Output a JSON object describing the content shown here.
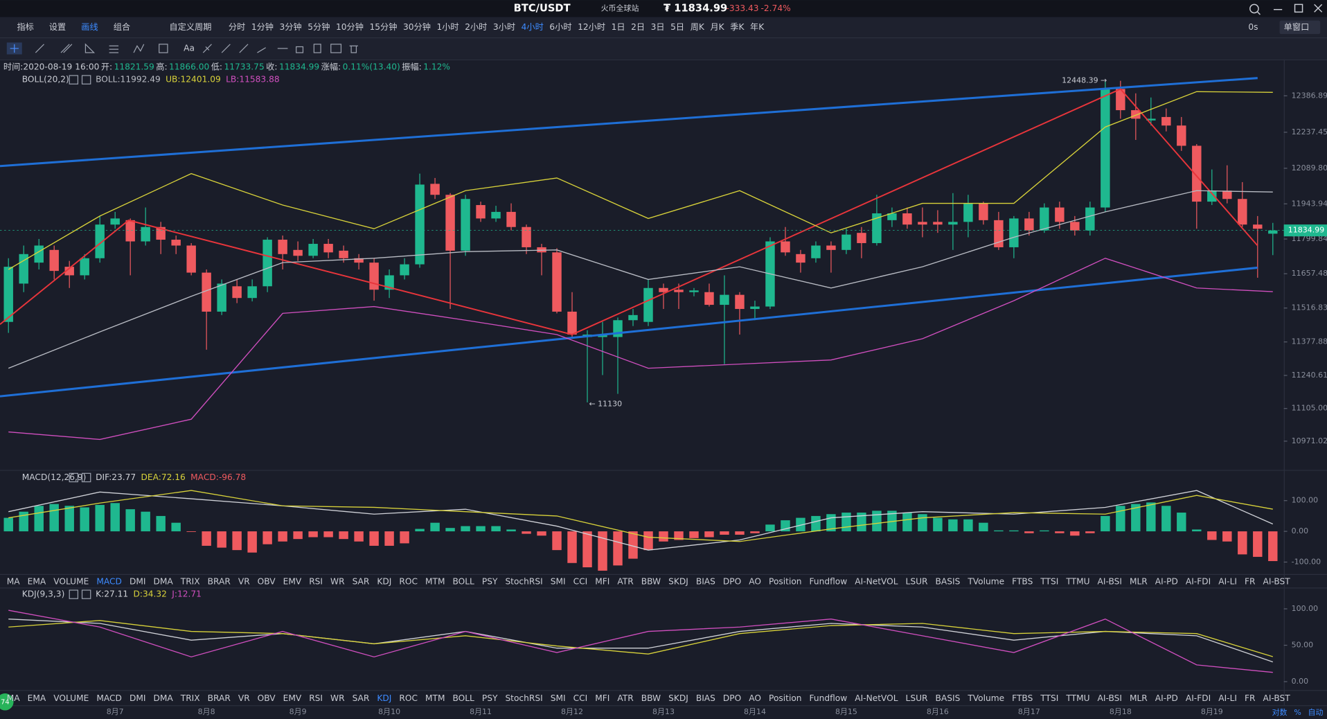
{
  "header": {
    "pair": "BTC/USDT",
    "exchange": "火币全球站",
    "price": "₮ 11834.99",
    "change": "-333.43",
    "change_pct": "-2.74%"
  },
  "toolbar": {
    "tools": [
      "指标",
      "设置",
      "画线",
      "组合"
    ],
    "active_tool": "画线",
    "custom_period": "自定义周期",
    "periods": [
      "分时",
      "1分钟",
      "3分钟",
      "5分钟",
      "10分钟",
      "15分钟",
      "30分钟",
      "1小时",
      "2小时",
      "3小时",
      "4小时",
      "6小时",
      "12小时",
      "1日",
      "2日",
      "3日",
      "5日",
      "周K",
      "月K",
      "季K",
      "年K"
    ],
    "active_period": "4小时",
    "timer": "0s",
    "window": "单窗口",
    "text_tool": "Aa"
  },
  "info": {
    "items": [
      "时间:2020-08-19 16:00",
      "开:",
      "11821.59",
      "高:",
      "11866.00",
      "低:",
      "11733.75",
      "收:",
      "11834.99",
      "涨幅:",
      "0.11%(13.40)",
      "振幅:",
      "1.12%"
    ]
  },
  "legends": {
    "boll": [
      "BOLL(20,2)",
      "BOLL:11992.49",
      "UB:12401.09",
      "LB:11583.88"
    ],
    "macd": [
      "MACD(12,26,9)",
      "DIF:23.77",
      "DEA:72.16",
      "MACD:-96.78"
    ],
    "kdj": [
      "KDJ(9,3,3)",
      "K:27.11",
      "D:34.32",
      "J:12.71"
    ]
  },
  "indicator_tabs": {
    "items": [
      "MA",
      "EMA",
      "VOLUME",
      "MACD",
      "DMI",
      "DMA",
      "TRIX",
      "BRAR",
      "VR",
      "OBV",
      "EMV",
      "RSI",
      "WR",
      "SAR",
      "KDJ",
      "ROC",
      "MTM",
      "BOLL",
      "PSY",
      "StochRSI",
      "SMI",
      "CCI",
      "MFI",
      "ATR",
      "BBW",
      "SKDJ",
      "BIAS",
      "DPO",
      "AO",
      "Position",
      "Fundflow",
      "AI-NetVOL",
      "LSUR",
      "BASIS",
      "TVolume",
      "FTBS",
      "TTSI",
      "TTMU",
      "AI-BSI",
      "MLR",
      "AI-PD",
      "AI-FDI",
      "AI-LI",
      "FR",
      "AI-BST"
    ],
    "active_rows": [
      "MACD",
      "KDJ"
    ]
  },
  "footer": {
    "scale_modes": [
      "对数",
      "%",
      "自动"
    ],
    "badge": "74"
  },
  "chart": {
    "type": "candlestick",
    "colors": {
      "up": "#1fb88f",
      "down": "#ef5a5f"
    },
    "x": [
      null,
      null,
      null,
      null,
      null,
      null,
      null,
      "8月7",
      null,
      null,
      null,
      null,
      null,
      "8月8",
      null,
      null,
      null,
      null,
      null,
      "8月9",
      null,
      null,
      null,
      null,
      null,
      "8月10",
      null,
      null,
      null,
      null,
      null,
      "8月11",
      null,
      null,
      null,
      null,
      null,
      "8月12",
      null,
      null,
      null,
      null,
      null,
      "8月13",
      null,
      null,
      null,
      null,
      null,
      "8月14",
      null,
      null,
      null,
      null,
      null,
      "8月15",
      null,
      null,
      null,
      null,
      null,
      "8月16",
      null,
      null,
      null,
      null,
      null,
      "8月17",
      null,
      null,
      null,
      null,
      null,
      "8月18",
      null,
      null,
      null,
      null,
      null,
      "8月19",
      null,
      null,
      null,
      null
    ],
    "candles": [
      [
        11460,
        11721,
        11415,
        11686
      ],
      [
        11617,
        11773,
        11582,
        11738
      ],
      [
        11703,
        11800,
        11675,
        11773
      ],
      [
        11755,
        11773,
        11634,
        11669
      ],
      [
        11686,
        11710,
        11599,
        11651
      ],
      [
        11651,
        11738,
        11634,
        11721
      ],
      [
        11721,
        11894,
        11703,
        11859
      ],
      [
        11859,
        11911,
        11842,
        11884
      ],
      [
        11877,
        11884,
        11651,
        11790
      ],
      [
        11790,
        11929,
        11773,
        11849
      ],
      [
        11849,
        11870,
        11738,
        11797
      ],
      [
        11797,
        11814,
        11738,
        11773
      ],
      [
        11773,
        11783,
        11651,
        11662
      ],
      [
        11662,
        11675,
        11346,
        11502
      ],
      [
        11502,
        11634,
        11488,
        11617
      ],
      [
        11606,
        11634,
        11537,
        11558
      ],
      [
        11558,
        11634,
        11544,
        11606
      ],
      [
        11606,
        11807,
        11582,
        11797
      ],
      [
        11797,
        11814,
        11675,
        11738
      ],
      [
        11755,
        11790,
        11710,
        11731
      ],
      [
        11731,
        11800,
        11721,
        11780
      ],
      [
        11780,
        11800,
        11721,
        11745
      ],
      [
        11752,
        11773,
        11703,
        11721
      ],
      [
        11721,
        11738,
        11675,
        11703
      ],
      [
        11703,
        11721,
        11547,
        11592
      ],
      [
        11592,
        11675,
        11558,
        11651
      ],
      [
        11651,
        11721,
        11634,
        11696
      ],
      [
        11696,
        12068,
        11682,
        12023
      ],
      [
        12026,
        12050,
        11964,
        11981
      ],
      [
        11981,
        11988,
        11513,
        11752
      ],
      [
        11752,
        11981,
        11731,
        11964
      ],
      [
        11939,
        11953,
        11870,
        11884
      ],
      [
        11884,
        11936,
        11870,
        11911
      ],
      [
        11911,
        11946,
        11835,
        11849
      ],
      [
        11849,
        11859,
        11738,
        11766
      ],
      [
        11766,
        11780,
        11651,
        11745
      ],
      [
        11745,
        11762,
        11495,
        11502
      ],
      [
        11502,
        11582,
        11391,
        11408
      ],
      [
        11398,
        11426,
        11130,
        11408
      ],
      [
        11398,
        11460,
        11242,
        11405
      ],
      [
        11398,
        11478,
        11165,
        11467
      ],
      [
        11467,
        11513,
        11443,
        11488
      ],
      [
        11460,
        11634,
        11443,
        11599
      ],
      [
        11599,
        11617,
        11513,
        11582
      ],
      [
        11592,
        11617,
        11513,
        11582
      ],
      [
        11582,
        11599,
        11565,
        11589
      ],
      [
        11582,
        11617,
        11523,
        11530
      ],
      [
        11530,
        11651,
        11287,
        11571
      ],
      [
        11571,
        11582,
        11408,
        11513
      ],
      [
        11513,
        11547,
        11467,
        11523
      ],
      [
        11523,
        11807,
        11513,
        11790
      ],
      [
        11790,
        11849,
        11731,
        11745
      ],
      [
        11738,
        11755,
        11662,
        11703
      ],
      [
        11721,
        11790,
        11703,
        11773
      ],
      [
        11773,
        11790,
        11662,
        11755
      ],
      [
        11755,
        11842,
        11738,
        11818
      ],
      [
        11825,
        11849,
        11721,
        11783
      ],
      [
        11783,
        11981,
        11773,
        11905
      ],
      [
        11877,
        11929,
        11849,
        11905
      ],
      [
        11905,
        11929,
        11842,
        11859
      ],
      [
        11870,
        11929,
        11807,
        11859
      ],
      [
        11870,
        11918,
        11825,
        11859
      ],
      [
        11859,
        11988,
        11755,
        11870
      ],
      [
        11870,
        11981,
        11807,
        11946
      ],
      [
        11946,
        11953,
        11859,
        11877
      ],
      [
        11877,
        11911,
        11755,
        11766
      ],
      [
        11766,
        11894,
        11721,
        11884
      ],
      [
        11884,
        11911,
        11814,
        11835
      ],
      [
        11835,
        11946,
        11825,
        11929
      ],
      [
        11929,
        11953,
        11842,
        11870
      ],
      [
        11870,
        11894,
        11814,
        11835
      ],
      [
        11835,
        11953,
        11814,
        11929
      ],
      [
        11929,
        12446,
        11911,
        12415
      ],
      [
        12415,
        12448.39,
        12293,
        12328
      ],
      [
        12328,
        12397,
        12206,
        12293
      ],
      [
        12286,
        12380,
        12265,
        12293
      ],
      [
        12300,
        12335,
        12241,
        12265
      ],
      [
        12265,
        12300,
        12161,
        12182
      ],
      [
        12182,
        12189,
        11842,
        11953
      ],
      [
        11953,
        12085,
        11939,
        11998
      ],
      [
        11998,
        12102,
        11946,
        11964
      ],
      [
        11964,
        12033,
        11849,
        11859
      ],
      [
        11859,
        11894,
        11641,
        11842
      ],
      [
        11821.59,
        11866,
        11733.75,
        11834.99
      ]
    ],
    "ylim": [
      10853,
      12529
    ],
    "yticks": [
      12386.89,
      12237.45,
      {
        "value": 12089.8,
        "label": "12089.80"
      },
      11943.94,
      11799.84,
      11657.48,
      11516.83,
      11377.88,
      11240.61,
      {
        "value": 11105,
        "label": "11105.00"
      },
      10971.02
    ],
    "high_note": "12448.39 →",
    "low_note": "← 11130",
    "boll": {
      "index": [
        0,
        6,
        12,
        18,
        24,
        30,
        36,
        42,
        48,
        54,
        60,
        66,
        72,
        78,
        83
      ],
      "upper": [
        11675,
        11894,
        12068,
        11939,
        11842,
        11998,
        12050,
        11884,
        11998,
        11825,
        11946,
        11946,
        12259,
        12404,
        12401.09
      ],
      "mid": [
        11270,
        11419,
        11565,
        11703,
        11721,
        11748,
        11755,
        11634,
        11686,
        11599,
        11686,
        11807,
        11911,
        11998,
        11992.49
      ],
      "lower": [
        11009,
        10978,
        11061,
        11495,
        11523,
        11467,
        11408,
        11270,
        11287,
        11304,
        11391,
        11547,
        11721,
        11599,
        11583.88
      ],
      "colors": [
        "#d8d23a",
        "#b9bcc4",
        "#d04fbf"
      ]
    }
  },
  "macd": {
    "ylim": [
      -139,
      197
    ],
    "yticks": [
      {
        "value": 100,
        "label": "100.00"
      },
      {
        "value": 0,
        "label": "0.00"
      },
      {
        "value": -100,
        "label": "-100.00"
      }
    ],
    "hist": [
      44,
      64,
      83,
      89,
      83,
      78,
      86,
      92,
      72,
      64,
      50,
      28,
      -2,
      -47,
      -53,
      -61,
      -69,
      -42,
      -33,
      -25,
      -19,
      -19,
      -25,
      -33,
      -47,
      -47,
      -39,
      8,
      28,
      11,
      17,
      17,
      17,
      6,
      -8,
      -14,
      -61,
      -103,
      -117,
      -128,
      -111,
      -89,
      -61,
      -33,
      -28,
      -22,
      -19,
      -11,
      -11,
      -6,
      22,
      36,
      44,
      50,
      56,
      61,
      61,
      67,
      67,
      61,
      56,
      44,
      39,
      39,
      28,
      3,
      3,
      -6,
      3,
      -6,
      -14,
      -6,
      50,
      83,
      89,
      94,
      83,
      61,
      6,
      -28,
      -33,
      -75,
      -83,
      -96.78
    ],
    "index": [
      0,
      6,
      12,
      18,
      24,
      30,
      36,
      42,
      48,
      54,
      60,
      66,
      72,
      78,
      83
    ],
    "dif": [
      64,
      128,
      106,
      83,
      56,
      72,
      17,
      -61,
      -28,
      44,
      64,
      56,
      78,
      133,
      23.77
    ],
    "dea": [
      44,
      92,
      133,
      83,
      78,
      64,
      50,
      -19,
      -33,
      8,
      44,
      61,
      56,
      117,
      72.16
    ],
    "colors": [
      "#d0d2d8",
      "#d8d23a"
    ]
  },
  "kdj": {
    "ylim": [
      -11.5,
      128
    ],
    "yticks": [
      {
        "value": 100,
        "label": "100.00"
      },
      {
        "value": 50,
        "label": "50.00"
      },
      {
        "value": 0,
        "label": "0.00"
      }
    ],
    "index": [
      0,
      6,
      12,
      18,
      24,
      30,
      36,
      42,
      48,
      54,
      60,
      66,
      72,
      78,
      83
    ],
    "k": [
      86,
      80,
      57,
      66,
      52,
      69,
      46,
      46,
      69,
      80,
      75,
      57,
      69,
      63,
      27.11
    ],
    "d": [
      75,
      84,
      69,
      66,
      52,
      63,
      49,
      38,
      66,
      77,
      80,
      66,
      69,
      66,
      34.32
    ],
    "j": [
      98,
      75,
      34,
      69,
      34,
      69,
      40,
      69,
      75,
      86,
      63,
      40,
      86,
      23,
      12.71
    ],
    "colors": [
      "#d0d2d8",
      "#d8d23a",
      "#d04fbf"
    ]
  }
}
